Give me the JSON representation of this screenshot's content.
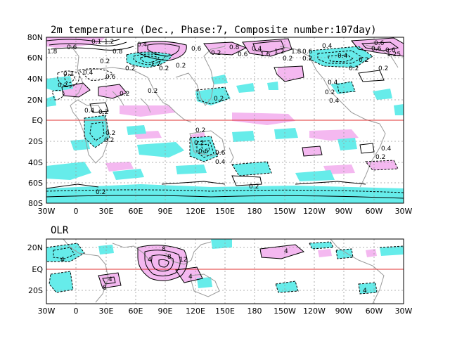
{
  "top_panel": {
    "title": "2m temperature (Dec., Phase:7, Composite number:107day)",
    "y_ticks": [
      "80N",
      "60N",
      "40N",
      "20N",
      "EQ",
      "20S",
      "40S",
      "60S",
      "80S"
    ],
    "x_ticks": [
      "30W",
      "0",
      "30E",
      "60E",
      "90E",
      "120E",
      "150E",
      "180",
      "150W",
      "120W",
      "90W",
      "60W",
      "30W"
    ],
    "contour_labels": [
      "0.1",
      "1.2",
      "0.6",
      "0.4",
      "0.8",
      "1.8",
      "0.2",
      "0.2",
      "0.2",
      "0.6",
      "1.2",
      "0.8",
      "1.6",
      "0.2",
      "0.2",
      "1.2",
      "0.6",
      "1.8",
      "0.2",
      "0.4",
      "0.4",
      "0.6",
      "0.2",
      "0.6",
      "0.6",
      "0.4",
      "0.6",
      "1.25",
      "0.2",
      "0.2",
      "0.6",
      "0.4",
      "0.2",
      "0.4",
      "0.2",
      "0.2",
      "0.2",
      "0.4",
      "0.2",
      "0.4",
      "0.6",
      "0.2",
      "0.2",
      "0.4",
      "0.2",
      "0.2",
      "0.6",
      "0.2",
      "0.2",
      "0.4",
      "0.2",
      "0.2",
      "0.2",
      "0.2"
    ]
  },
  "bottom_panel": {
    "title": "OLR",
    "y_ticks": [
      "20N",
      "EQ",
      "20S"
    ],
    "x_ticks": [
      "30W",
      "0",
      "30E",
      "60E",
      "90E",
      "120E",
      "150E",
      "180",
      "150W",
      "120W",
      "90W",
      "60W",
      "30W"
    ],
    "contour_labels": [
      "4",
      "8",
      "12",
      "8",
      "4",
      "4",
      "8",
      "4",
      "4",
      "4"
    ]
  },
  "colors": {
    "positive_shading": "#f4b8f0",
    "negative_shading": "#66ecea",
    "equator_line": "#e03030",
    "coastline": "#999999",
    "contour": "#000000",
    "grid": "#9a9a9a"
  }
}
